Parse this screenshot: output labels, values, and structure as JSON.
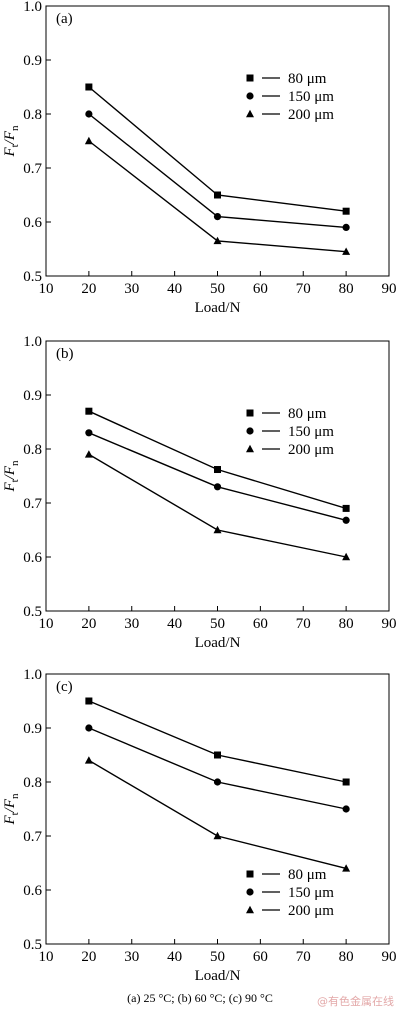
{
  "chart_data": [
    {
      "type": "line",
      "panel_label": "(a)",
      "x": [
        20,
        50,
        80
      ],
      "xlim": [
        10,
        90
      ],
      "ylim": [
        0.5,
        1.0
      ],
      "xticks": [
        10,
        20,
        30,
        40,
        50,
        60,
        70,
        80,
        90
      ],
      "yticks": [
        0.5,
        0.6,
        0.7,
        0.8,
        0.9,
        1.0
      ],
      "xlabel": "Load/N",
      "ylabel_main": "F",
      "ylabel_sub1": "t",
      "ylabel_slash": "/F",
      "ylabel_sub2": "n",
      "legend_position": "right",
      "series": [
        {
          "name": "80 μm",
          "marker": "square",
          "values": [
            0.85,
            0.65,
            0.62
          ]
        },
        {
          "name": "150 μm",
          "marker": "circle",
          "values": [
            0.8,
            0.61,
            0.59
          ]
        },
        {
          "name": "200 μm",
          "marker": "triangle",
          "values": [
            0.75,
            0.565,
            0.545
          ]
        }
      ]
    },
    {
      "type": "line",
      "panel_label": "(b)",
      "x": [
        20,
        50,
        80
      ],
      "xlim": [
        10,
        90
      ],
      "ylim": [
        0.5,
        1.0
      ],
      "xticks": [
        10,
        20,
        30,
        40,
        50,
        60,
        70,
        80,
        90
      ],
      "yticks": [
        0.5,
        0.6,
        0.7,
        0.8,
        0.9,
        1.0
      ],
      "xlabel": "Load/N",
      "ylabel_main": "F",
      "ylabel_sub1": "t",
      "ylabel_slash": "/F",
      "ylabel_sub2": "n",
      "legend_position": "right",
      "series": [
        {
          "name": "80 μm",
          "marker": "square",
          "values": [
            0.87,
            0.762,
            0.69
          ]
        },
        {
          "name": "150 μm",
          "marker": "circle",
          "values": [
            0.83,
            0.73,
            0.668
          ]
        },
        {
          "name": "200 μm",
          "marker": "triangle",
          "values": [
            0.79,
            0.65,
            0.6
          ]
        }
      ]
    },
    {
      "type": "line",
      "panel_label": "(c)",
      "x": [
        20,
        50,
        80
      ],
      "xlim": [
        10,
        90
      ],
      "ylim": [
        0.5,
        1.0
      ],
      "xticks": [
        10,
        20,
        30,
        40,
        50,
        60,
        70,
        80,
        90
      ],
      "yticks": [
        0.5,
        0.6,
        0.7,
        0.8,
        0.9,
        1.0
      ],
      "xlabel": "Load/N",
      "ylabel_main": "F",
      "ylabel_sub1": "t",
      "ylabel_slash": "/F",
      "ylabel_sub2": "n",
      "legend_position": "bottom-right",
      "series": [
        {
          "name": "80 μm",
          "marker": "square",
          "values": [
            0.95,
            0.85,
            0.8
          ]
        },
        {
          "name": "150 μm",
          "marker": "circle",
          "values": [
            0.9,
            0.8,
            0.75
          ]
        },
        {
          "name": "200 μm",
          "marker": "triangle",
          "values": [
            0.84,
            0.7,
            0.64
          ]
        }
      ]
    }
  ],
  "caption": "(a) 25 °C; (b) 60 °C; (c) 90 °C",
  "watermark": "@有色金属在线",
  "colors": {
    "line": "#000000",
    "background": "#ffffff",
    "watermark": "#e3a9a9"
  }
}
